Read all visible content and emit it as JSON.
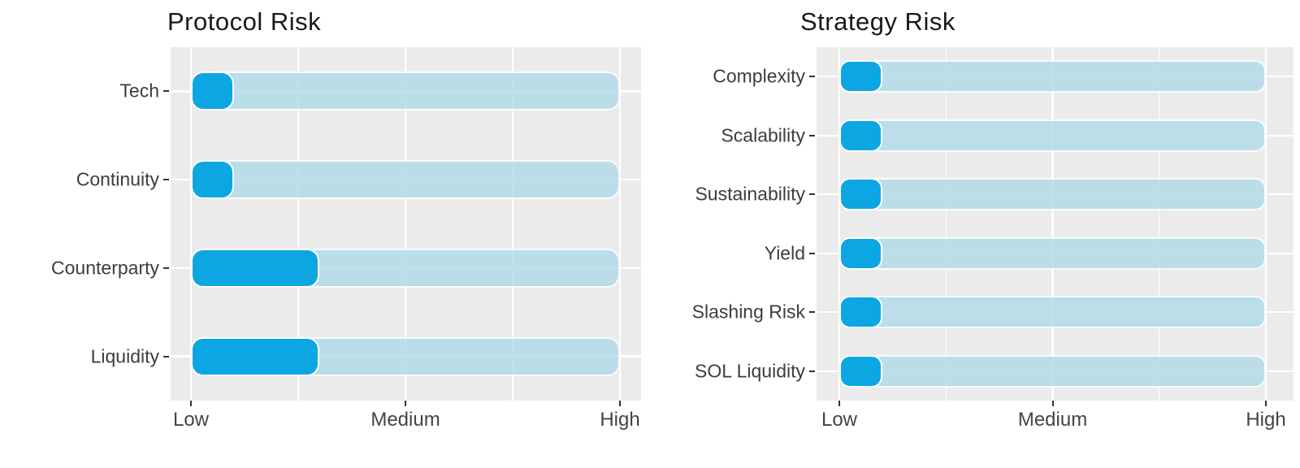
{
  "page": {
    "background": "#FFFFFF"
  },
  "colors": {
    "accent_fill": "#0CA7E2",
    "track_fill": "#ADD8E6",
    "panel_background": "#EBEBEB",
    "gridline": "#FFFFFF",
    "axis_text": "#3D3D3D",
    "title_text": "#1A1A1A"
  },
  "chart_data": [
    {
      "type": "bar",
      "orientation": "horizontal",
      "title": "Protocol Risk",
      "categories": [
        "Tech",
        "Continuity",
        "Counterparty",
        "Liquidity"
      ],
      "values": [
        0.1,
        0.1,
        0.3,
        0.3
      ],
      "track_full": 1.0,
      "xlim": [
        0,
        1
      ],
      "x_ticks": [
        {
          "pos": 0.0,
          "label": "Low"
        },
        {
          "pos": 0.5,
          "label": "Medium"
        },
        {
          "pos": 1.0,
          "label": "High"
        }
      ],
      "xlabel": "",
      "ylabel": "",
      "grid": true,
      "legend": false
    },
    {
      "type": "bar",
      "orientation": "horizontal",
      "title": "Strategy Risk",
      "categories": [
        "Complexity",
        "Scalability",
        "Sustainability",
        "Yield",
        "Slashing Risk",
        "SOL Liquidity"
      ],
      "values": [
        0.1,
        0.1,
        0.1,
        0.1,
        0.1,
        0.1
      ],
      "track_full": 1.0,
      "xlim": [
        0,
        1
      ],
      "x_ticks": [
        {
          "pos": 0.0,
          "label": "Low"
        },
        {
          "pos": 0.5,
          "label": "Medium"
        },
        {
          "pos": 1.0,
          "label": "High"
        }
      ],
      "xlabel": "",
      "ylabel": "",
      "grid": true,
      "legend": false
    }
  ]
}
